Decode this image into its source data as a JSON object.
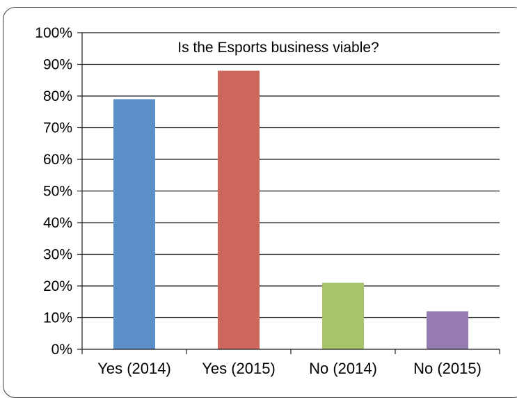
{
  "chart_data": {
    "type": "bar",
    "title": "Is the Esports business viable?",
    "categories": [
      "Yes (2014)",
      "Yes (2015)",
      "No (2014)",
      "No (2015)"
    ],
    "values": [
      79,
      88,
      21,
      12
    ],
    "colors": [
      "#5b8fc8",
      "#cd665d",
      "#a7c46c",
      "#957bb2"
    ],
    "ylim": [
      0,
      100
    ],
    "yticks": [
      0,
      10,
      20,
      30,
      40,
      50,
      60,
      70,
      80,
      90,
      100
    ],
    "ytick_labels": [
      "0%",
      "10%",
      "20%",
      "30%",
      "40%",
      "50%",
      "60%",
      "70%",
      "80%",
      "90%",
      "100%"
    ],
    "xlabel": "",
    "ylabel": "",
    "grid": true,
    "legend": "none"
  }
}
